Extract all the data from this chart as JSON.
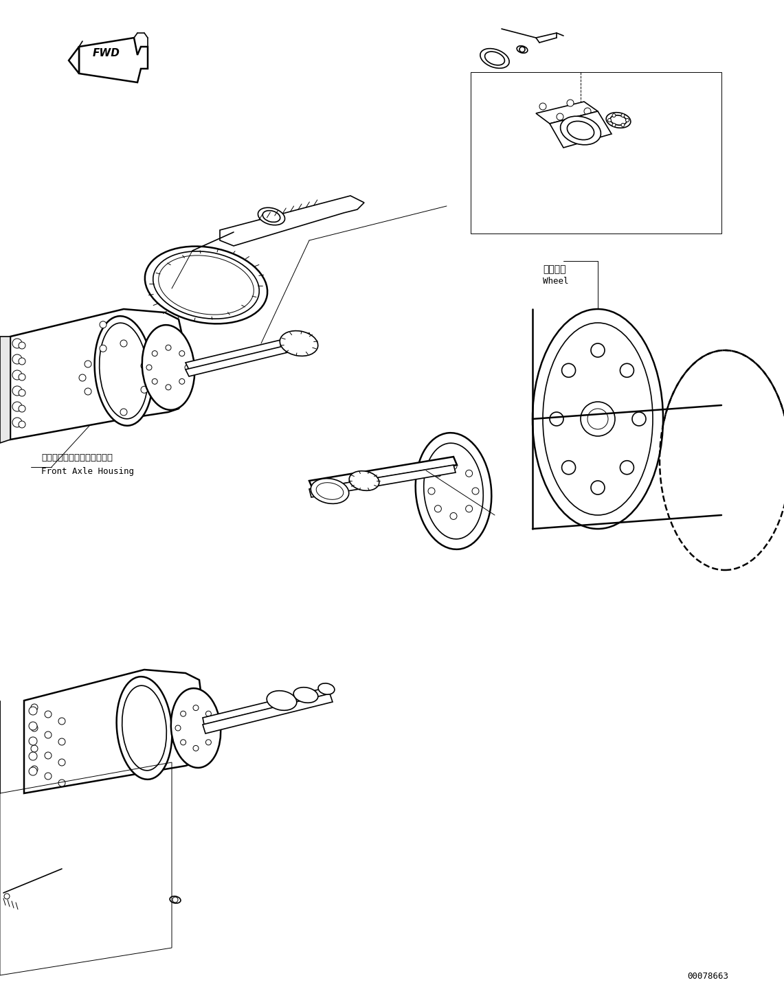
{
  "bg_color": "#ffffff",
  "line_color": "#000000",
  "fig_width": 11.41,
  "fig_height": 14.56,
  "dpi": 100,
  "label_front_axle_jp": "フロントアクスルハウジング",
  "label_front_axle_en": "Front Axle Housing",
  "label_wheel_jp": "ホイール",
  "label_wheel_en": "Wheel",
  "label_fwd": "FWD",
  "label_code": "00078663",
  "lw": 1.2,
  "lw_thin": 0.7,
  "lw_thick": 1.8
}
